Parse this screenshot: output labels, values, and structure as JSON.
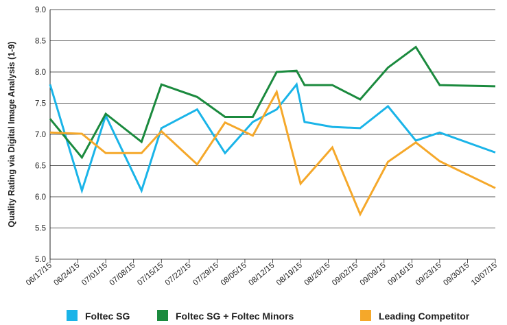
{
  "chart_data": {
    "type": "line",
    "y_label": "Quality Rating via Digital Image Analysis (1-9)",
    "ylim": [
      5,
      9
    ],
    "yticks": [
      {
        "value": 5,
        "label": "5.0"
      },
      {
        "value": 5.5,
        "label": "5.5"
      },
      {
        "value": 6,
        "label": "6.0"
      },
      {
        "value": 6.5,
        "label": "6.5"
      },
      {
        "value": 7,
        "label": "7.0"
      },
      {
        "value": 7.5,
        "label": "7.5"
      },
      {
        "value": 8,
        "label": "8.0"
      },
      {
        "value": 8.5,
        "label": "8.5"
      },
      {
        "value": 9,
        "label": "9.0"
      }
    ],
    "xlim": [
      "2015-06-17",
      "2015-10-07"
    ],
    "xticks": [
      {
        "value": "2015-06-17",
        "label": "06/17/15"
      },
      {
        "value": "2015-06-24",
        "label": "06/24/15"
      },
      {
        "value": "2015-07-01",
        "label": "07/01/15"
      },
      {
        "value": "2015-07-08",
        "label": "07/08/15"
      },
      {
        "value": "2015-07-15",
        "label": "07/15/15"
      },
      {
        "value": "2015-07-22",
        "label": "07/22/15"
      },
      {
        "value": "2015-07-29",
        "label": "07/29/15"
      },
      {
        "value": "2015-08-05",
        "label": "08/05/15"
      },
      {
        "value": "2015-08-12",
        "label": "08/12/15"
      },
      {
        "value": "2015-08-19",
        "label": "08/19/15"
      },
      {
        "value": "2015-08-26",
        "label": "08/26/15"
      },
      {
        "value": "2015-09-02",
        "label": "09/02/15"
      },
      {
        "value": "2015-09-09",
        "label": "09/09/15"
      },
      {
        "value": "2015-09-16",
        "label": "09/16/15"
      },
      {
        "value": "2015-09-23",
        "label": "09/23/15"
      },
      {
        "value": "2015-09-30",
        "label": "09/30/15"
      },
      {
        "value": "2015-10-07",
        "label": "10/07/15"
      }
    ],
    "grid": true,
    "legend": "bottom",
    "series": [
      {
        "name": "Foltec SG",
        "color": "#1ab4e8",
        "x": [
          "2015-06-17",
          "2015-06-25",
          "2015-07-01",
          "2015-07-10",
          "2015-07-15",
          "2015-07-24",
          "2015-07-31",
          "2015-08-07",
          "2015-08-13",
          "2015-08-18",
          "2015-08-20",
          "2015-08-27",
          "2015-09-03",
          "2015-09-10",
          "2015-09-17",
          "2015-09-23",
          "2015-10-07"
        ],
        "values": [
          7.8,
          6.1,
          7.3,
          6.1,
          7.1,
          7.4,
          6.7,
          7.2,
          7.4,
          7.8,
          7.2,
          7.12,
          7.1,
          7.45,
          6.9,
          7.03,
          6.71
        ]
      },
      {
        "name": "Foltec SG + Foltec Minors",
        "color": "#1b8a3e",
        "x": [
          "2015-06-17",
          "2015-06-25",
          "2015-07-01",
          "2015-07-10",
          "2015-07-15",
          "2015-07-24",
          "2015-07-31",
          "2015-08-07",
          "2015-08-13",
          "2015-08-18",
          "2015-08-20",
          "2015-08-27",
          "2015-09-03",
          "2015-09-10",
          "2015-09-17",
          "2015-09-23",
          "2015-10-07"
        ],
        "values": [
          7.25,
          6.63,
          7.33,
          6.88,
          7.8,
          7.6,
          7.28,
          7.28,
          8.0,
          8.02,
          7.79,
          7.79,
          7.56,
          8.07,
          8.4,
          7.79,
          7.77
        ]
      },
      {
        "name": "Leading Competitor",
        "color": "#f5a82a",
        "x": [
          "2015-06-17",
          "2015-06-25",
          "2015-07-01",
          "2015-07-10",
          "2015-07-15",
          "2015-07-24",
          "2015-07-31",
          "2015-08-07",
          "2015-08-13",
          "2015-08-19",
          "2015-08-27",
          "2015-09-03",
          "2015-09-10",
          "2015-09-17",
          "2015-09-23",
          "2015-10-07"
        ],
        "values": [
          7.03,
          7.01,
          6.7,
          6.7,
          7.05,
          6.52,
          7.19,
          6.98,
          7.68,
          6.21,
          6.79,
          5.72,
          6.56,
          6.87,
          6.57,
          6.14
        ]
      }
    ]
  }
}
